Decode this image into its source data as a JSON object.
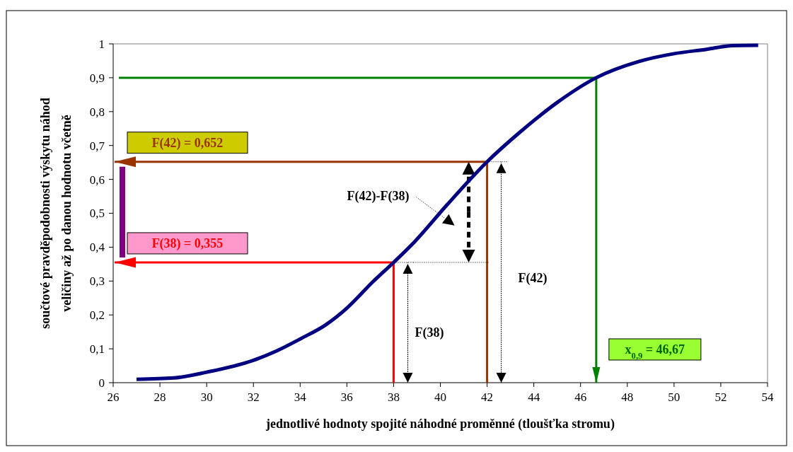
{
  "chart_data": {
    "type": "line",
    "xlabel": "jednotlivé hodnoty spojité náhodné proměnné (tloušťka stromu)",
    "ylabel": "součtové pravděpodobnosti výskytu náhod\nveličiny až po danou hodnotu včetně",
    "xlim": [
      26,
      54
    ],
    "xticks": [
      26,
      28,
      30,
      32,
      34,
      36,
      38,
      40,
      42,
      44,
      46,
      48,
      50,
      52,
      54
    ],
    "ylim": [
      0,
      1
    ],
    "yticks": [
      0,
      {
        "value": 0.1,
        "label": "0,1"
      },
      {
        "value": 0.2,
        "label": "0,2"
      },
      {
        "value": 0.3,
        "label": "0,3"
      },
      {
        "value": 0.4,
        "label": "0,4"
      },
      {
        "value": 0.5,
        "label": "0,5"
      },
      {
        "value": 0.6,
        "label": "0,6"
      },
      {
        "value": 0.7,
        "label": "0,7"
      },
      {
        "value": 0.8,
        "label": "0,8"
      },
      {
        "value": 0.9,
        "label": "0,9"
      },
      1
    ],
    "series": [
      {
        "color": "#000080",
        "x": [
          27,
          28.6,
          30,
          32,
          33,
          34,
          35.1,
          36,
          37.1,
          38,
          38.9,
          40.3,
          42,
          43.4,
          45,
          46.67,
          48.5,
          50,
          51.4,
          52.5,
          53.6
        ],
        "values": [
          0.01,
          0.014,
          0.031,
          0.066,
          0.094,
          0.129,
          0.171,
          0.22,
          0.297,
          0.355,
          0.416,
          0.526,
          0.652,
          0.739,
          0.827,
          0.9,
          0.948,
          0.971,
          0.984,
          0.995,
          0.996
        ]
      }
    ],
    "ref_lines": [
      {
        "axis": "x",
        "value": 42,
        "color": "#993300"
      },
      {
        "axis": "y",
        "value": 0.652,
        "color": "#993300"
      },
      {
        "axis": "x",
        "value": 38,
        "color": "#ff0000"
      },
      {
        "axis": "y",
        "value": 0.355,
        "color": "#ff0000"
      },
      {
        "axis": "x",
        "value": 46.67,
        "color": "#008000"
      },
      {
        "axis": "y",
        "value": 0.9,
        "color": "#008000"
      }
    ],
    "annotations": [
      "F(42) = 0,652",
      "F(38) = 0,355",
      "x$_{0,9}$ = 46,67",
      "F(42)-F(38)",
      "F(42)",
      "F(38)"
    ]
  }
}
